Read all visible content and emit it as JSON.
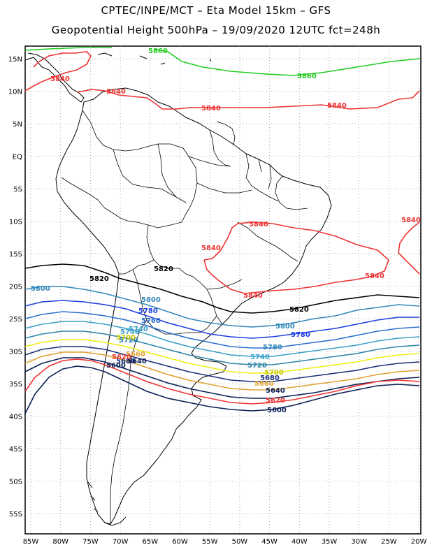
{
  "title_line1": "CPTEC/INPE/MCT –  Eta Model 15km – GFS",
  "title_line2": "Geopotential Height 500hPa – 19/09/2020 12UTC fct=248h",
  "lat_labels": [
    "15N",
    "10N",
    "5N",
    "EQ",
    "5S",
    "10S",
    "15S",
    "20S",
    "25S",
    "30S",
    "35S",
    "40S",
    "45S",
    "50S",
    "55S"
  ],
  "lon_labels": [
    "85W",
    "80W",
    "75W",
    "70W",
    "65W",
    "60W",
    "55W",
    "50W",
    "45W",
    "40W",
    "35W",
    "30W",
    "25W",
    "20W"
  ],
  "contours": [
    {
      "value": "5860",
      "color": "#22cc22"
    },
    {
      "value": "5840",
      "color": "#ee3333"
    },
    {
      "value": "5820",
      "color": "#000000"
    },
    {
      "value": "5800",
      "color": "#3388bb"
    },
    {
      "value": "5780",
      "color": "#1f3fe0"
    },
    {
      "value": "5760",
      "color": "#2a6fd0"
    },
    {
      "value": "5740",
      "color": "#3aa0c8"
    },
    {
      "value": "5720",
      "color": "#2c84a8"
    },
    {
      "value": "5700",
      "color": "#eeee11"
    },
    {
      "value": "5680",
      "color": "#1a2f7a"
    },
    {
      "value": "5660",
      "color": "#e0a030"
    },
    {
      "value": "5640",
      "color": "#0a1f55"
    },
    {
      "value": "5620",
      "color": "#ee3333"
    },
    {
      "value": "5600",
      "color": "#0a1f55"
    }
  ],
  "contour_labels": {
    "green1": "5860",
    "green2": "5860",
    "red1": "5840",
    "red2": "5840",
    "red3": "5840",
    "red4": "5840",
    "red5": "5840",
    "red6": "5840",
    "red7": "5840",
    "red8": "5840",
    "red9": "5840",
    "black1": "5820",
    "black2": "5820",
    "black3": "5820",
    "c5800a": "5800",
    "c5800b": "5800",
    "c5800c": "5800",
    "c5780a": "5780",
    "c5780b": "5780",
    "c5780c": "5780",
    "c5760a": "5760",
    "c5740a": "5740",
    "c5740b": "5740",
    "c5740c": "5740",
    "c5720a": "5720",
    "c5720b": "5720",
    "c5700a": "5700",
    "c5700b": "5700",
    "c5680a": "5680",
    "c5680b": "5680",
    "c5660a": "5660",
    "c5660b": "5660",
    "c5640a": "5640",
    "c5640b": "5640",
    "c5620a": "5620",
    "c5620b": "5620",
    "c5600a": "5600",
    "c5600b": "5600"
  }
}
